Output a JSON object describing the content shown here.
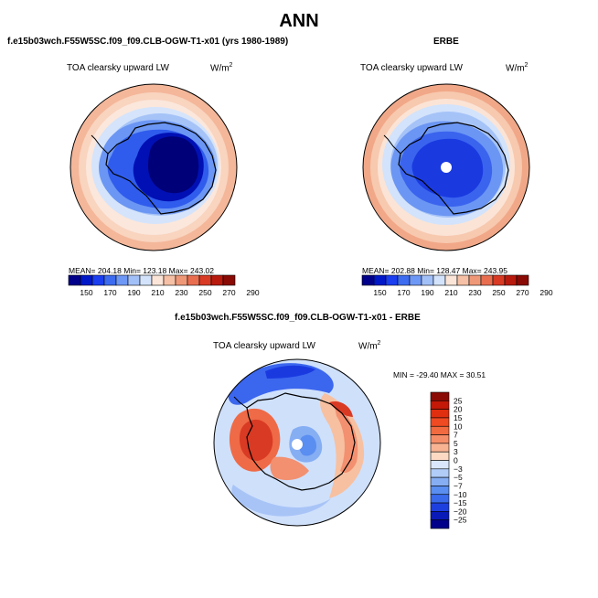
{
  "title": "ANN",
  "panels": [
    {
      "title": "f.e15b03wch.F55W5SC.f09_f09.CLB-OGW-T1-x01 (yrs 1980-1989)",
      "variable": "TOA clearsky upward LW",
      "units": "W/m",
      "units_sup": "2",
      "stats": "MEAN= 204.18   Min= 123.18   Max= 243.02"
    },
    {
      "title": "ERBE",
      "variable": "TOA clearsky upward LW",
      "units": "W/m",
      "units_sup": "2",
      "stats": "MEAN= 202.88   Min= 128.47   Max= 243.95"
    },
    {
      "title": "f.e15b03wch.F55W5SC.f09_f09.CLB-OGW-T1-x01 - ERBE",
      "variable": "TOA clearsky upward LW",
      "units": "W/m",
      "units_sup": "2",
      "stats": "MIN = -29.40  MAX =  30.51"
    }
  ],
  "colorbar_abs": {
    "ticks": [
      "150",
      "170",
      "190",
      "210",
      "230",
      "250",
      "270",
      "290"
    ],
    "colors": [
      "#00008a",
      "#0018c8",
      "#1a3ef0",
      "#3d6cf0",
      "#6e98f5",
      "#a2c0f8",
      "#d3e3fb",
      "#fbe5d8",
      "#f5c0a5",
      "#ef9878",
      "#e96e50",
      "#d93a24",
      "#b81a0e",
      "#8a0a05"
    ]
  },
  "colorbar_diff": {
    "labels": [
      "25",
      "20",
      "15",
      "10",
      "7",
      "5",
      "3",
      "0",
      "−3",
      "−5",
      "−7",
      "−10",
      "−15",
      "−20",
      "−25"
    ],
    "colors": [
      "#8a0a05",
      "#c41808",
      "#e02e10",
      "#ef4a22",
      "#f26a40",
      "#f58d68",
      "#f8b393",
      "#fbd9c3",
      "#d9e6fb",
      "#b0ccf7",
      "#86aef3",
      "#5a8ef0",
      "#3a6aec",
      "#1e3fe0",
      "#0a1ab8",
      "#00008a"
    ]
  }
}
